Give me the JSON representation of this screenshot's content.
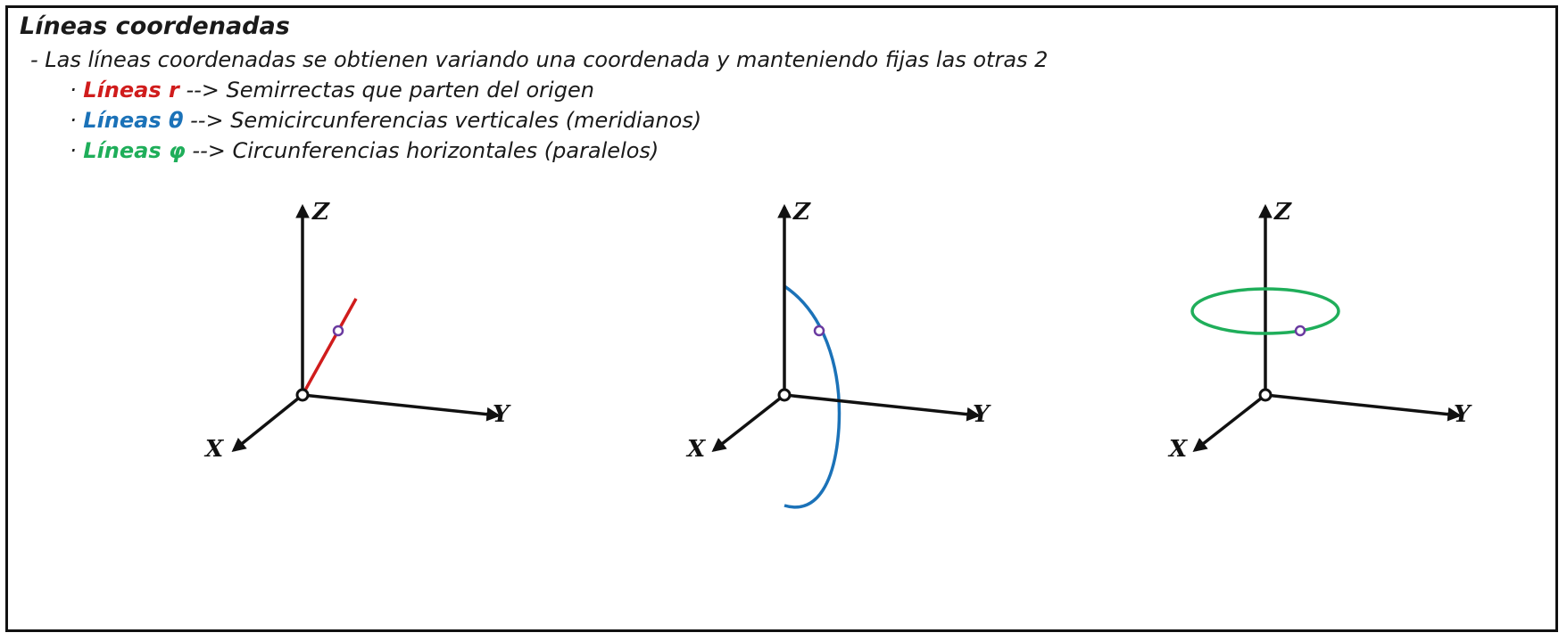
{
  "title": "Líneas coordenadas",
  "intro": "- Las líneas coordenadas se obtienen variando una coordenada y manteniendo fijas las otras 2",
  "bullet_marker": "·",
  "items": [
    {
      "term": "Líneas r",
      "description": "--> Semirrectas que parten del origen",
      "color": "#d01c1c"
    },
    {
      "term": "Líneas θ",
      "description": "--> Semicircunferencias verticales (meridianos)",
      "color": "#1b72b8"
    },
    {
      "term": "Líneas φ",
      "description": "--> Circunferencias horizontales (paralelos)",
      "color": "#1fae5a"
    }
  ],
  "axes": {
    "x": "X",
    "y": "Y",
    "z": "Z"
  },
  "colors": {
    "axis": "#111111",
    "point": "#6a3aa0",
    "r_line": "#d01c1c",
    "theta_line": "#1b72b8",
    "phi_line": "#1fae5a"
  }
}
